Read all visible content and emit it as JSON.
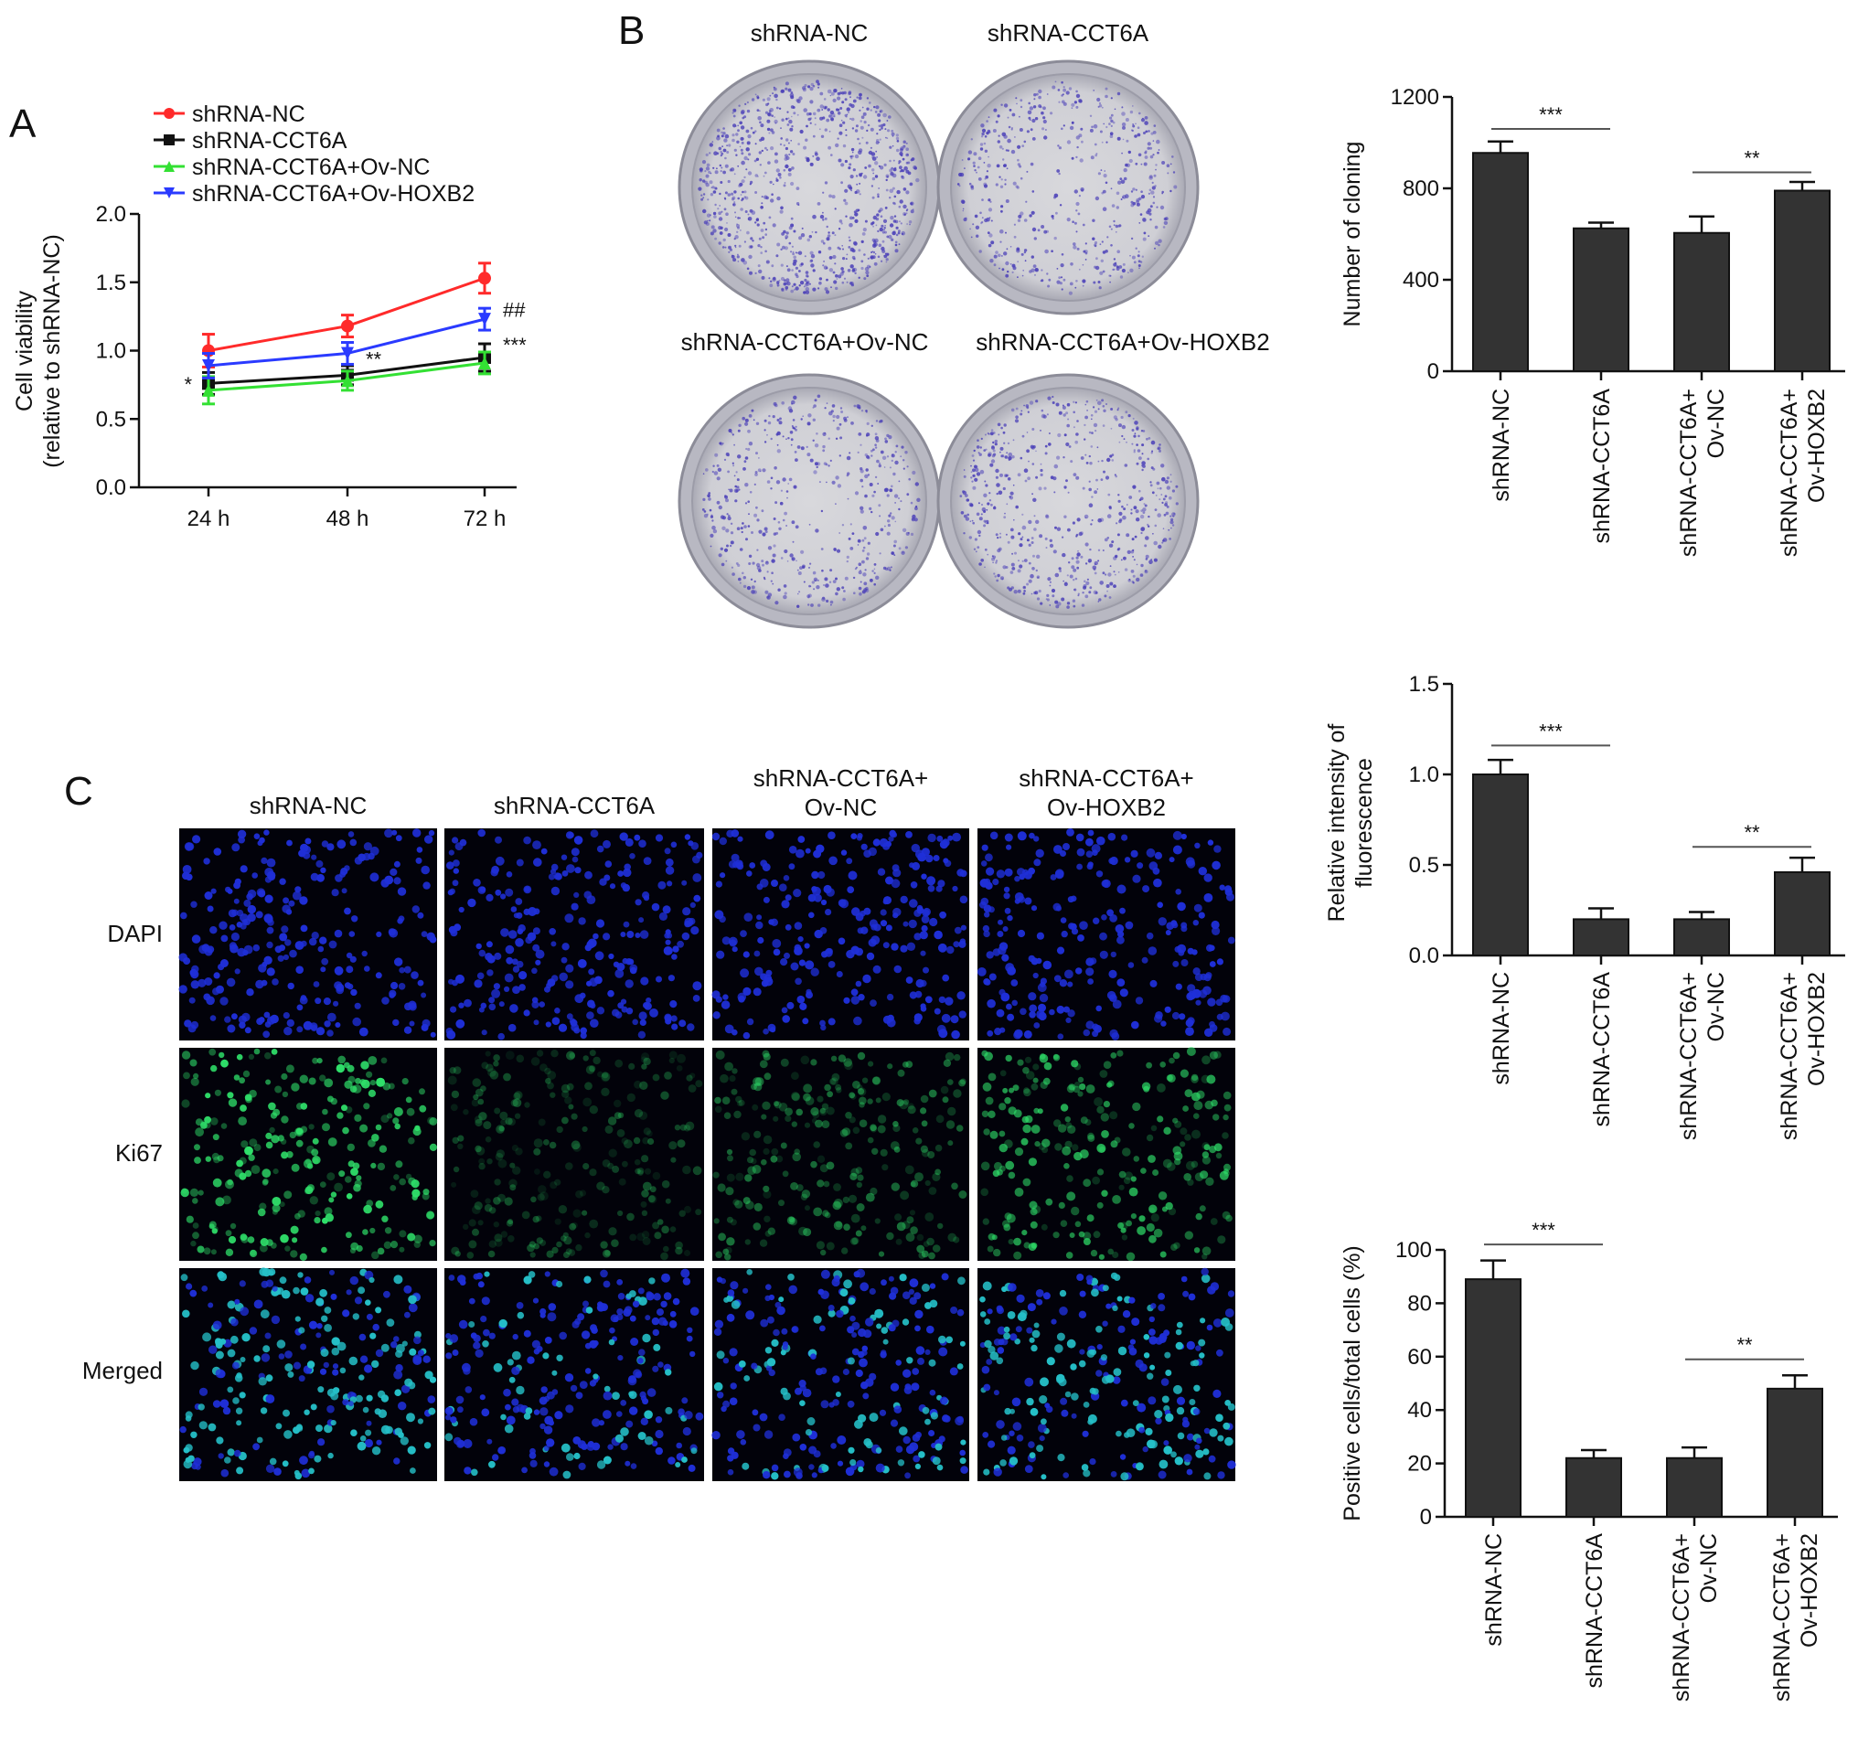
{
  "panels": {
    "a": "A",
    "b": "B",
    "c": "C"
  },
  "colony_labels": [
    "shRNA-NC",
    "shRNA-CCT6A",
    "shRNA-CCT6A+Ov-NC",
    "shRNA-CCT6A+Ov-HOXB2"
  ],
  "fluor": {
    "col_labels": [
      [
        "shRNA-NC"
      ],
      [
        "shRNA-CCT6A"
      ],
      [
        "shRNA-CCT6A+",
        "Ov-NC"
      ],
      [
        "shRNA-CCT6A+",
        "Ov-HOXB2"
      ]
    ],
    "row_labels": [
      "DAPI",
      "Ki67",
      "Merged"
    ]
  },
  "colors": {
    "red": "#ff2a2a",
    "black": "#111111",
    "green": "#33e033",
    "blue": "#2a3aff",
    "bar": "#333333",
    "dapi": "#1f2fd8",
    "ki67": "#2fe06a",
    "merged": "#25c0c8",
    "dish": "#bfbfc6"
  },
  "chart_data": [
    {
      "type": "line",
      "id": "A",
      "x": [
        "24 h",
        "48 h",
        "72 h"
      ],
      "ylabel": [
        "Cell viability",
        "(relative to shRNA-NC)"
      ],
      "ylim": [
        0,
        2.0
      ],
      "yticks": [
        "0.0",
        "0.5",
        "1.0",
        "1.5",
        "2.0"
      ],
      "legend_position": "top-left",
      "series": [
        {
          "name": "shRNA-NC",
          "color": "red",
          "marker": "circle",
          "values": [
            1.0,
            1.18,
            1.53
          ],
          "err": [
            0.12,
            0.08,
            0.11
          ]
        },
        {
          "name": "shRNA-CCT6A",
          "color": "black",
          "marker": "square",
          "values": [
            0.76,
            0.82,
            0.95
          ],
          "err": [
            0.08,
            0.07,
            0.1
          ]
        },
        {
          "name": "shRNA-CCT6A+Ov-NC",
          "color": "green",
          "marker": "triangle-up",
          "values": [
            0.71,
            0.78,
            0.91
          ],
          "err": [
            0.1,
            0.07,
            0.08
          ]
        },
        {
          "name": "shRNA-CCT6A+Ov-HOXB2",
          "color": "blue",
          "marker": "triangle-down",
          "values": [
            0.89,
            0.98,
            1.23
          ],
          "err": [
            0.09,
            0.08,
            0.08
          ]
        }
      ],
      "annotations": [
        {
          "text": "*",
          "x_index": 0,
          "y": 0.77
        },
        {
          "text": "**",
          "x_index": 1,
          "y": 0.94
        },
        {
          "text": "***",
          "x_index": 2,
          "y": 1.03
        },
        {
          "text": "##",
          "x_index": 2,
          "y": 1.3
        }
      ]
    },
    {
      "type": "bar",
      "id": "B",
      "categories": [
        [
          "shRNA-NC"
        ],
        [
          "shRNA-CCT6A"
        ],
        [
          "shRNA-CCT6A+",
          "Ov-NC"
        ],
        [
          "shRNA-CCT6A+",
          "Ov-HOXB2"
        ]
      ],
      "values": [
        955,
        625,
        605,
        790
      ],
      "err": [
        50,
        25,
        72,
        38
      ],
      "ylabel": [
        "Number of cloning"
      ],
      "ylim": [
        0,
        1200
      ],
      "yticks": [
        "0",
        "400",
        "800",
        "1200"
      ],
      "sig": [
        {
          "text": "***",
          "from": 0,
          "to": 1,
          "y": 1060
        },
        {
          "text": "**",
          "from": 2,
          "to": 3,
          "y": 870
        }
      ]
    },
    {
      "type": "bar",
      "id": "C1",
      "categories": [
        [
          "shRNA-NC"
        ],
        [
          "shRNA-CCT6A"
        ],
        [
          "shRNA-CCT6A+",
          "Ov-NC"
        ],
        [
          "shRNA-CCT6A+",
          "Ov-HOXB2"
        ]
      ],
      "values": [
        1.0,
        0.2,
        0.2,
        0.46
      ],
      "err": [
        0.08,
        0.06,
        0.04,
        0.08
      ],
      "ylabel": [
        "Relative intensity of",
        "fluorescence"
      ],
      "ylim": [
        0,
        1.5
      ],
      "yticks": [
        "0.0",
        "0.5",
        "1.0",
        "1.5"
      ],
      "sig": [
        {
          "text": "***",
          "from": 0,
          "to": 1,
          "y": 1.16
        },
        {
          "text": "**",
          "from": 2,
          "to": 3,
          "y": 0.6
        }
      ]
    },
    {
      "type": "bar",
      "id": "C2",
      "categories": [
        [
          "shRNA-NC"
        ],
        [
          "shRNA-CCT6A"
        ],
        [
          "shRNA-CCT6A+",
          "Ov-NC"
        ],
        [
          "shRNA-CCT6A+",
          "Ov-HOXB2"
        ]
      ],
      "values": [
        89,
        22,
        22,
        48
      ],
      "err": [
        7,
        3,
        4,
        5
      ],
      "ylabel": [
        "Positive cells/total cells (%)"
      ],
      "ylim": [
        0,
        100
      ],
      "yticks": [
        "0",
        "20",
        "40",
        "60",
        "80",
        "100"
      ],
      "sig": [
        {
          "text": "***",
          "from": 0,
          "to": 1,
          "y": 102
        },
        {
          "text": "**",
          "from": 2,
          "to": 3,
          "y": 59
        }
      ]
    }
  ]
}
